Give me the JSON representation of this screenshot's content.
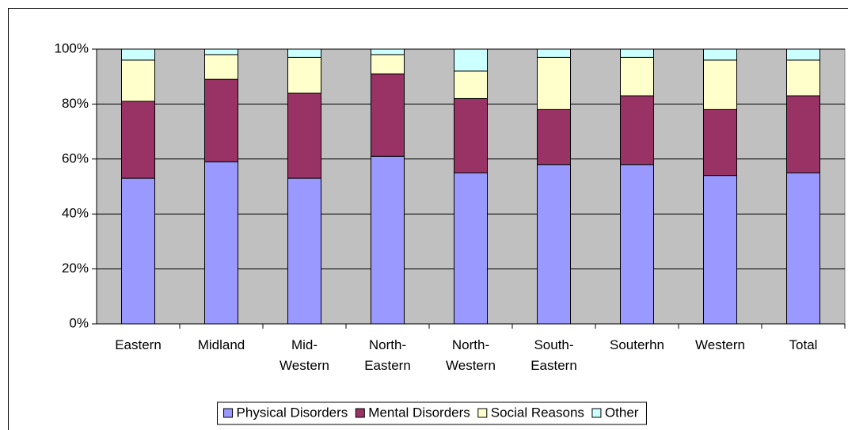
{
  "chart_data": {
    "type": "stacked_bar",
    "categories": [
      "Eastern",
      "Midland",
      "Mid-Western",
      "North-Eastern",
      "North-Western",
      "South-Eastern",
      "Souterhn",
      "Western",
      "Total"
    ],
    "series": [
      {
        "name": "Physical Disorders",
        "color": "#9999ff",
        "values": [
          53,
          59,
          53,
          61,
          55,
          58,
          58,
          54,
          55
        ]
      },
      {
        "name": "Mental Disorders",
        "color": "#993366",
        "values": [
          28,
          30,
          31,
          30,
          27,
          20,
          25,
          24,
          28
        ]
      },
      {
        "name": "Social Reasons",
        "color": "#ffffcc",
        "values": [
          15,
          9,
          13,
          7,
          10,
          19,
          14,
          18,
          13
        ]
      },
      {
        "name": "Other",
        "color": "#ccffff",
        "values": [
          4,
          2,
          3,
          2,
          8,
          3,
          3,
          4,
          4
        ]
      }
    ],
    "ylim": [
      0,
      100
    ],
    "yticks": [
      {
        "value": 0,
        "label": "0%"
      },
      {
        "value": 20,
        "label": "20%"
      },
      {
        "value": 40,
        "label": "40%"
      },
      {
        "value": 60,
        "label": "60%"
      },
      {
        "value": 80,
        "label": "80%"
      },
      {
        "value": 100,
        "label": "100%"
      }
    ],
    "grid": true,
    "legend": "bottom"
  }
}
